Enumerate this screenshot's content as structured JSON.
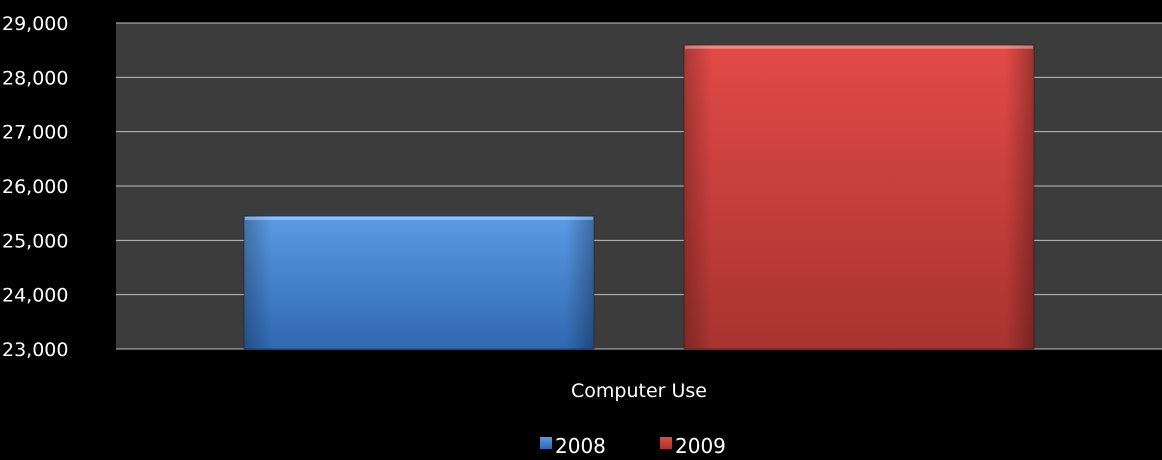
{
  "chart_data": {
    "type": "bar",
    "categories": [
      "Computer Use"
    ],
    "series": [
      {
        "name": "2008",
        "values": [
          25450
        ],
        "color": "#3f7ed0"
      },
      {
        "name": "2009",
        "values": [
          28600
        ],
        "color": "#d8423f"
      }
    ],
    "title": "",
    "xlabel": "",
    "ylabel": "",
    "ylim": [
      23000,
      29000
    ],
    "yticks": [
      23000,
      24000,
      25000,
      26000,
      27000,
      28000,
      29000
    ],
    "ytick_labels": [
      "23,000",
      "24,000",
      "25,000",
      "26,000",
      "27,000",
      "28,000",
      "29,000"
    ],
    "grid": true,
    "legend_position": "bottom",
    "plot_background": "#3c3c3c",
    "page_background": "#000000",
    "gridline_color": "#bfbfbf"
  }
}
